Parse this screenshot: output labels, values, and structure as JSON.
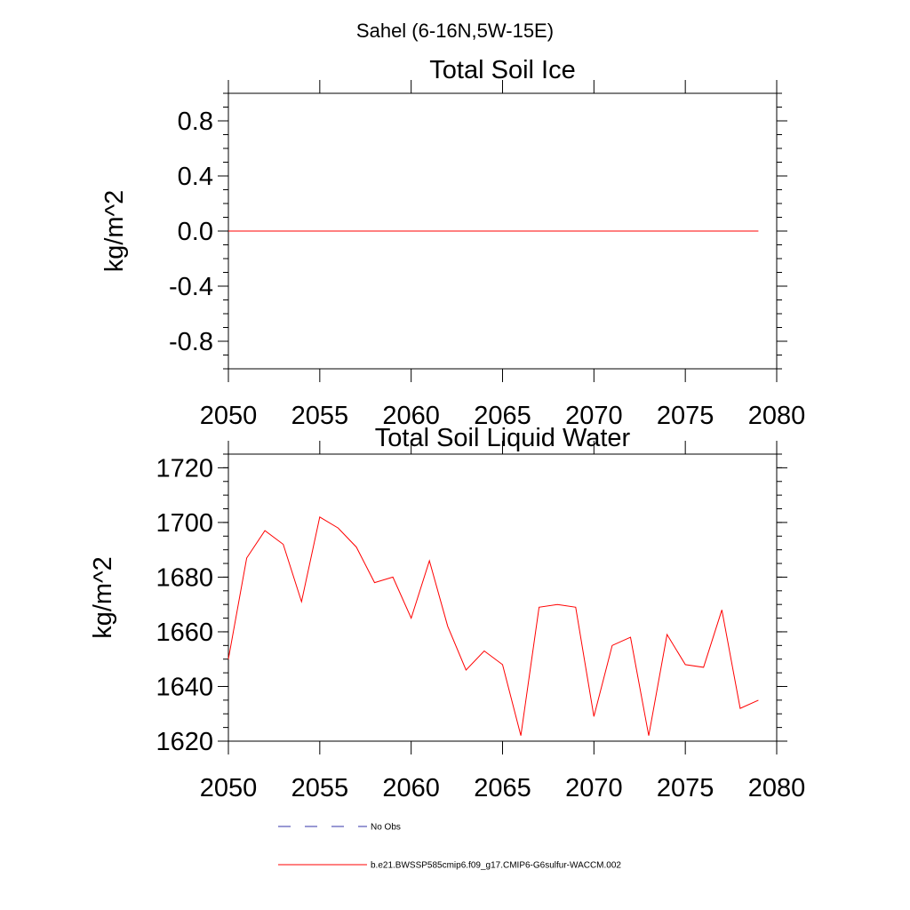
{
  "figure": {
    "suptitle": "Sahel (6-16N,5W-15E)"
  },
  "colors": {
    "model_line": "#ff0000",
    "obs_line": "#3333aa",
    "axis": "#000000"
  },
  "chart_data": [
    {
      "type": "line",
      "title": "Total Soil Ice",
      "xlabel": "",
      "ylabel": "kg/m^2",
      "xlim": [
        2050,
        2080
      ],
      "ylim": [
        -1,
        1
      ],
      "xticks": [
        2050,
        2055,
        2060,
        2065,
        2070,
        2075,
        2080
      ],
      "xtick_labels": [
        "2050",
        "2055",
        "2060",
        "2065",
        "2070",
        "2075",
        "2080"
      ],
      "yticks": [
        0.8,
        0.4,
        0.0,
        -0.4,
        -0.8
      ],
      "ytick_labels": [
        "0.8",
        "0.4",
        "0.0",
        "-0.4",
        "-0.8"
      ],
      "grid": false,
      "series": [
        {
          "name": "b.e21.BWSSP585cmip6.f09_g17.CMIP6-G6sulfur-WACCM.002",
          "color": "#ff0000",
          "x": [
            2050,
            2079
          ],
          "y": [
            0,
            0
          ]
        }
      ]
    },
    {
      "type": "line",
      "title": "Total Soil Liquid Water",
      "xlabel": "",
      "ylabel": "kg/m^2",
      "xlim": [
        2050,
        2080
      ],
      "ylim": [
        1620,
        1725
      ],
      "xticks": [
        2050,
        2055,
        2060,
        2065,
        2070,
        2075,
        2080
      ],
      "xtick_labels": [
        "2050",
        "2055",
        "2060",
        "2065",
        "2070",
        "2075",
        "2080"
      ],
      "yticks": [
        1720,
        1700,
        1680,
        1660,
        1640,
        1620
      ],
      "ytick_labels": [
        "1720",
        "1700",
        "1680",
        "1660",
        "1640",
        "1620"
      ],
      "grid": false,
      "series": [
        {
          "name": "b.e21.BWSSP585cmip6.f09_g17.CMIP6-G6sulfur-WACCM.002",
          "color": "#ff0000",
          "x": [
            2050,
            2051,
            2052,
            2053,
            2054,
            2055,
            2056,
            2057,
            2058,
            2059,
            2060,
            2061,
            2062,
            2063,
            2064,
            2065,
            2066,
            2067,
            2068,
            2069,
            2070,
            2071,
            2072,
            2073,
            2074,
            2075,
            2076,
            2077,
            2078,
            2079
          ],
          "y": [
            1650,
            1687,
            1697,
            1692,
            1671,
            1702,
            1698,
            1691,
            1678,
            1680,
            1665,
            1686,
            1662,
            1646,
            1653,
            1648,
            1622,
            1669,
            1670,
            1669,
            1629,
            1655,
            1658,
            1622,
            1659,
            1648,
            1647,
            1668,
            1632,
            1635
          ]
        }
      ]
    }
  ],
  "legend": {
    "placement": "bottom",
    "entries": [
      {
        "label": "No Obs",
        "style": "dashed",
        "color": "#3333aa"
      },
      {
        "label": "b.e21.BWSSP585cmip6.f09_g17.CMIP6-G6sulfur-WACCM.002",
        "style": "solid",
        "color": "#ff0000"
      }
    ]
  }
}
